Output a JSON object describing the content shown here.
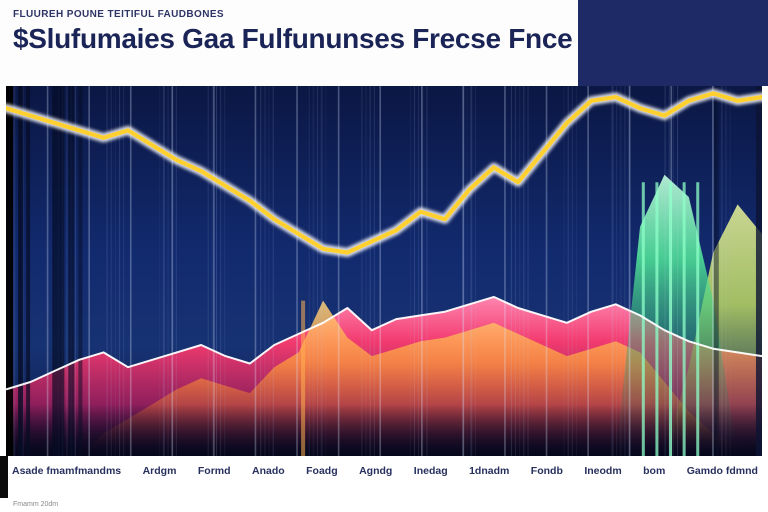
{
  "header": {
    "kicker": "FLUUREH POUNE TEITIFUL FAUDBONES",
    "title": "$Slufumaies Gaa Fulfununses Frecse Fnce"
  },
  "footnote": "Fmamm 20dm",
  "chart_data": {
    "type": "area",
    "title": "$Slufumaies Gaa Fulfununses Frecse Fnce",
    "subtitle": "FLUUREH POUNE TEITIFUL FAUDBONES",
    "x_labels": [
      "Asade fmamfmandms",
      "Ardgm",
      "Formd",
      "Anado",
      "Foadg",
      "Agndg",
      "Inedag",
      "1dnadm",
      "Fondb",
      "Ineodm",
      "bom",
      "Gamdo fdmnd"
    ],
    "ylim": [
      0,
      100
    ],
    "grid": "vertical-streaks",
    "legend": "none",
    "background_color": "#122a6e",
    "series": [
      {
        "name": "price-line",
        "type": "line",
        "color": "#ffd02e",
        "values": [
          94,
          92,
          90,
          88,
          86,
          88,
          84,
          80,
          77,
          73,
          69,
          64,
          60,
          56,
          55,
          58,
          61,
          66,
          64,
          72,
          78,
          74,
          82,
          90,
          96,
          97,
          94,
          92,
          96,
          98,
          96,
          97
        ]
      },
      {
        "name": "volume-pink",
        "type": "area",
        "color": "#f23b6f",
        "values": [
          18,
          20,
          23,
          26,
          28,
          24,
          26,
          28,
          30,
          27,
          25,
          30,
          33,
          36,
          40,
          34,
          37,
          38,
          39,
          41,
          43,
          40,
          38,
          36,
          39,
          41,
          38,
          34,
          31,
          29,
          28,
          27
        ]
      },
      {
        "name": "volume-orange",
        "type": "area",
        "color": "#ff9a3c",
        "values": [
          0,
          0,
          0,
          0,
          6,
          10,
          14,
          18,
          21,
          19,
          17,
          24,
          28,
          42,
          32,
          27,
          29,
          31,
          32,
          34,
          36,
          33,
          30,
          27,
          29,
          31,
          28,
          20,
          12,
          6,
          3,
          0
        ]
      },
      {
        "name": "volume-green",
        "type": "area",
        "color": "#54f29b",
        "values": [
          0,
          0,
          0,
          0,
          0,
          0,
          0,
          0,
          0,
          0,
          0,
          0,
          0,
          0,
          0,
          0,
          0,
          0,
          0,
          0,
          0,
          0,
          0,
          0,
          0,
          0,
          62,
          76,
          70,
          42,
          0,
          0
        ]
      },
      {
        "name": "volume-lime",
        "type": "area",
        "color": "#d8f55e",
        "values": [
          0,
          0,
          0,
          0,
          0,
          0,
          0,
          0,
          0,
          0,
          0,
          0,
          0,
          0,
          0,
          0,
          0,
          0,
          0,
          0,
          0,
          0,
          0,
          0,
          0,
          0,
          0,
          0,
          24,
          55,
          68,
          60
        ]
      }
    ]
  }
}
